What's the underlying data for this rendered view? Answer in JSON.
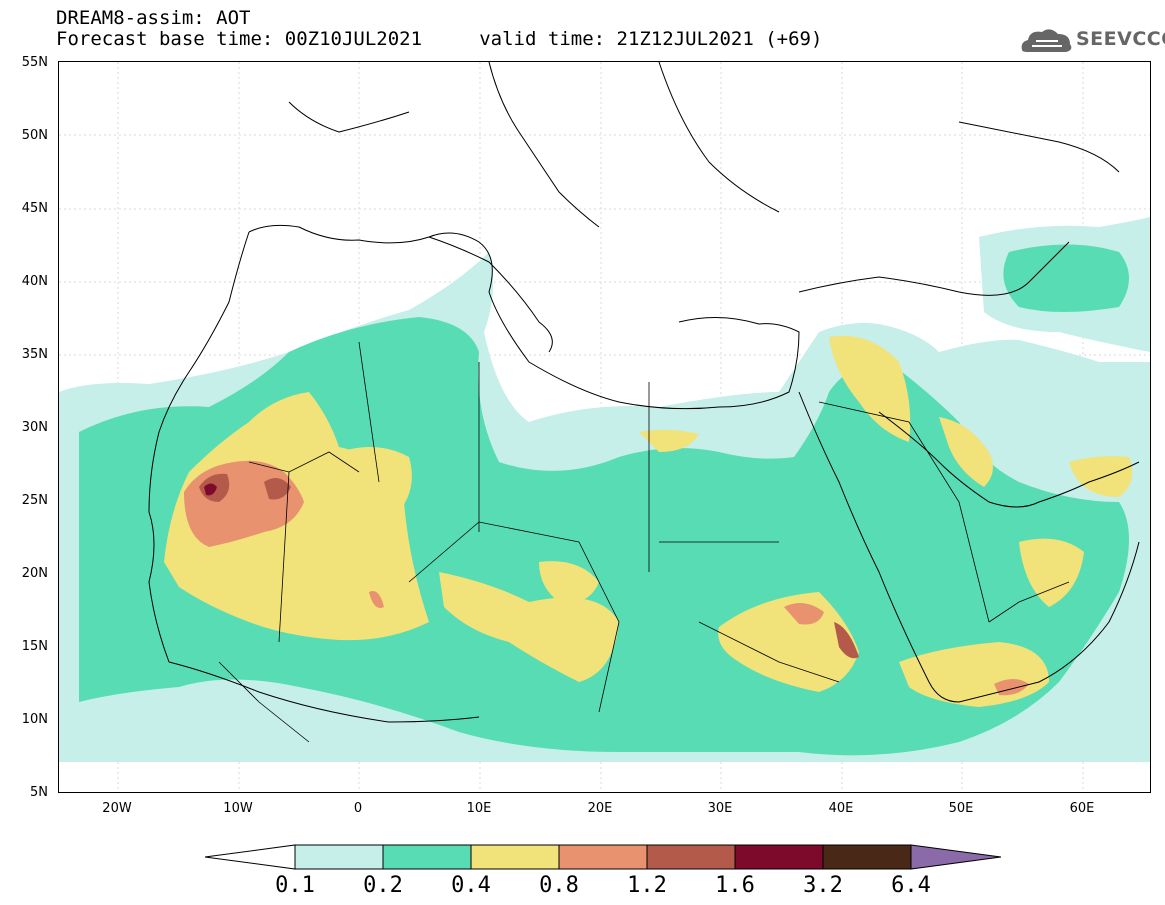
{
  "header": {
    "line1": "DREAM8-assim: AOT",
    "line2": "Forecast base time: 00Z10JUL2021     valid time: 21Z12JUL2021 (+69)"
  },
  "logo": {
    "text": "SEEVCCC",
    "icon": "cloud-icon"
  },
  "lat_labels": [
    "55N",
    "50N",
    "45N",
    "40N",
    "35N",
    "30N",
    "25N",
    "20N",
    "15N",
    "10N",
    "5N"
  ],
  "lon_labels": [
    "20W",
    "10W",
    "0",
    "10E",
    "20E",
    "30E",
    "40E",
    "50E",
    "60E"
  ],
  "colorbar": {
    "ticks": [
      "0.1",
      "0.2",
      "0.4",
      "0.8",
      "1.2",
      "1.6",
      "3.2",
      "6.4"
    ],
    "colors": [
      "#ffffff",
      "#c5efe8",
      "#58dcb4",
      "#f2e27a",
      "#e89270",
      "#b45a4a",
      "#7d0a2a",
      "#4a2818",
      "#8a6aa8"
    ]
  },
  "colors": {
    "c1": "#c5efe8",
    "c2": "#58dcb4",
    "c3": "#f2e27a",
    "c4": "#e89270",
    "c5": "#b45a4a",
    "c6": "#7d0a2a"
  }
}
